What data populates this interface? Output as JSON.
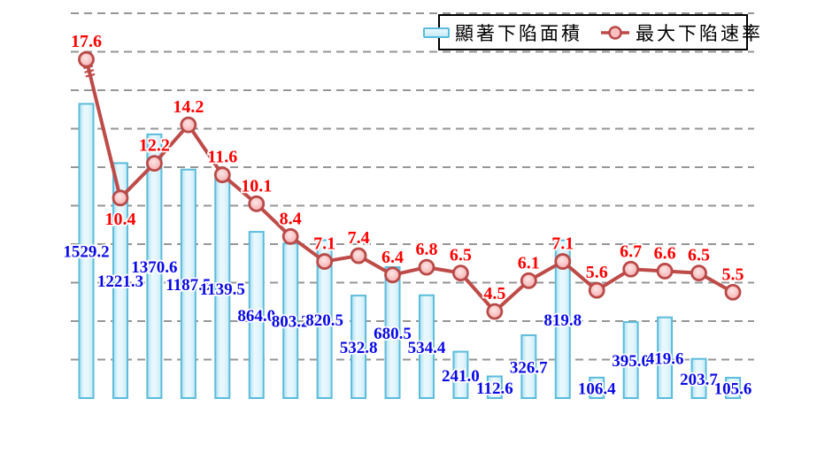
{
  "chart_data": {
    "type": "combo",
    "title": "",
    "series": [
      {
        "name": "顯著下陷面積",
        "type": "bar",
        "axis": "left",
        "values": [
          1529.2,
          1221.3,
          1370.6,
          1187.5,
          1139.5,
          864.0,
          803.2,
          820.5,
          532.8,
          680.5,
          534.4,
          241.0,
          112.6,
          326.7,
          819.8,
          106.4,
          395.0,
          419.6,
          203.7,
          105.6
        ]
      },
      {
        "name": "最大下陷速率",
        "type": "line",
        "axis": "right",
        "values": [
          17.6,
          10.4,
          12.2,
          14.2,
          11.6,
          10.1,
          8.4,
          7.1,
          7.4,
          6.4,
          6.8,
          6.5,
          4.5,
          6.1,
          7.1,
          5.6,
          6.7,
          6.6,
          6.5,
          5.5
        ]
      }
    ],
    "left_axis": {
      "min": 0,
      "max": 2000,
      "grid_step": 200,
      "tick_labels_visible": false
    },
    "right_axis": {
      "min": 0,
      "max": 20,
      "grid_step": 2,
      "tick_labels_visible": false
    },
    "x_axis": {
      "tick_labels_visible": false
    },
    "gridlines": {
      "orientation": "horizontal",
      "style": "dashed",
      "color": "#969696"
    },
    "legend": {
      "position": "top-right",
      "background": "#FFFFFF",
      "border_color": "#000000"
    },
    "annotations": {
      "line_break_marks_on_segment": 1,
      "rate_label_below_indices": [
        1
      ]
    },
    "colors": {
      "bar_fill_light": "#EAF8FE",
      "bar_fill_edge": "#A9E0F1",
      "bar_border": "#5BBCDC",
      "line": "#BE4B48",
      "marker_fill": "#F8BCBC",
      "marker_ring": "#B94A48",
      "bar_label": "#0909E8",
      "rate_label": "#FF0000",
      "gridline": "#969696"
    }
  }
}
